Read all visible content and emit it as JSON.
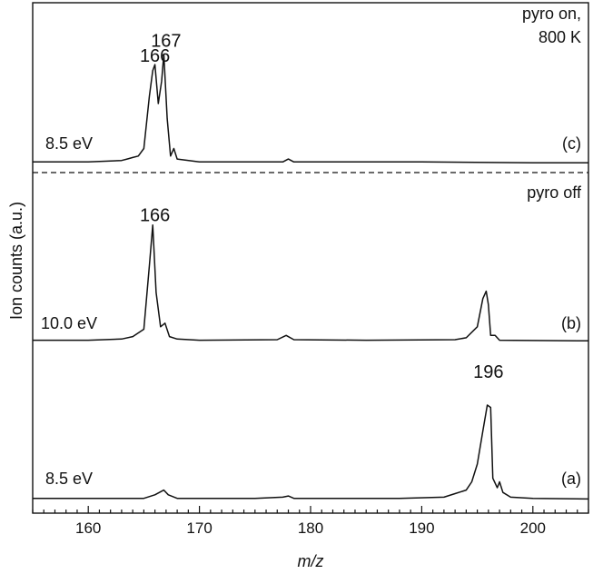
{
  "chart_data": {
    "type": "line",
    "xlabel": "m/z",
    "ylabel": "Ion counts (a.u.)",
    "xlim": [
      155,
      205
    ],
    "x_ticks": [
      160,
      170,
      180,
      190,
      200
    ],
    "x_minor_step": 1,
    "grid": false,
    "separator": "dashed line between panel (c) and panel (b)",
    "colors": {
      "line": "#111111",
      "axis": "#111111"
    },
    "series": [
      {
        "name": "(c)",
        "energy": "8.5 eV",
        "note": "pyro on,\n800 K",
        "peak_labels": [
          {
            "x": 166,
            "y": 0.68,
            "label": "166"
          },
          {
            "x": 167,
            "y": 0.78,
            "label": "167"
          }
        ],
        "points": [
          [
            155,
            0.01
          ],
          [
            160,
            0.01
          ],
          [
            163,
            0.02
          ],
          [
            163.5,
            0.03
          ],
          [
            164,
            0.04
          ],
          [
            164.5,
            0.05
          ],
          [
            165,
            0.1
          ],
          [
            165.5,
            0.45
          ],
          [
            165.8,
            0.62
          ],
          [
            166,
            0.66
          ],
          [
            166.3,
            0.4
          ],
          [
            166.6,
            0.55
          ],
          [
            166.8,
            0.73
          ],
          [
            167.1,
            0.3
          ],
          [
            167.4,
            0.05
          ],
          [
            167.7,
            0.1
          ],
          [
            168,
            0.03
          ],
          [
            170,
            0.01
          ],
          [
            177.5,
            0.01
          ],
          [
            178,
            0.03
          ],
          [
            178.5,
            0.01
          ],
          [
            190,
            0.01
          ],
          [
            200,
            0.005
          ],
          [
            205,
            0.005
          ]
        ]
      },
      {
        "name": "(b)",
        "energy": "10.0 eV",
        "note": "pyro off",
        "peak_labels": [
          {
            "x": 166,
            "y": 0.98,
            "label": "166"
          }
        ],
        "points": [
          [
            155,
            0.01
          ],
          [
            160,
            0.01
          ],
          [
            163,
            0.02
          ],
          [
            164,
            0.04
          ],
          [
            165,
            0.1
          ],
          [
            165.5,
            0.62
          ],
          [
            165.8,
            0.95
          ],
          [
            166.1,
            0.4
          ],
          [
            166.5,
            0.12
          ],
          [
            166.9,
            0.15
          ],
          [
            167.3,
            0.04
          ],
          [
            168,
            0.02
          ],
          [
            170,
            0.01
          ],
          [
            177,
            0.015
          ],
          [
            177.8,
            0.05
          ],
          [
            178.5,
            0.015
          ],
          [
            185,
            0.01
          ],
          [
            193,
            0.015
          ],
          [
            194,
            0.03
          ],
          [
            195,
            0.12
          ],
          [
            195.5,
            0.35
          ],
          [
            195.8,
            0.41
          ],
          [
            196,
            0.3
          ],
          [
            196.2,
            0.05
          ],
          [
            196.6,
            0.05
          ],
          [
            197,
            0.01
          ],
          [
            205,
            0.005
          ]
        ]
      },
      {
        "name": "(a)",
        "energy": "8.5 eV",
        "peak_labels": [
          {
            "x": 196,
            "y": 1.03,
            "label": "196"
          }
        ],
        "points": [
          [
            155,
            0.01
          ],
          [
            160,
            0.01
          ],
          [
            165,
            0.01
          ],
          [
            166,
            0.04
          ],
          [
            166.8,
            0.08
          ],
          [
            167.2,
            0.04
          ],
          [
            168,
            0.01
          ],
          [
            175,
            0.01
          ],
          [
            177.5,
            0.02
          ],
          [
            178,
            0.03
          ],
          [
            178.5,
            0.01
          ],
          [
            188,
            0.01
          ],
          [
            192,
            0.02
          ],
          [
            193,
            0.05
          ],
          [
            194,
            0.08
          ],
          [
            194.5,
            0.15
          ],
          [
            195,
            0.3
          ],
          [
            195.5,
            0.58
          ],
          [
            195.9,
            0.8
          ],
          [
            196.2,
            0.78
          ],
          [
            196.4,
            0.18
          ],
          [
            196.8,
            0.1
          ],
          [
            197,
            0.15
          ],
          [
            197.3,
            0.06
          ],
          [
            198,
            0.02
          ],
          [
            200,
            0.01
          ],
          [
            205,
            0.005
          ]
        ]
      }
    ]
  }
}
